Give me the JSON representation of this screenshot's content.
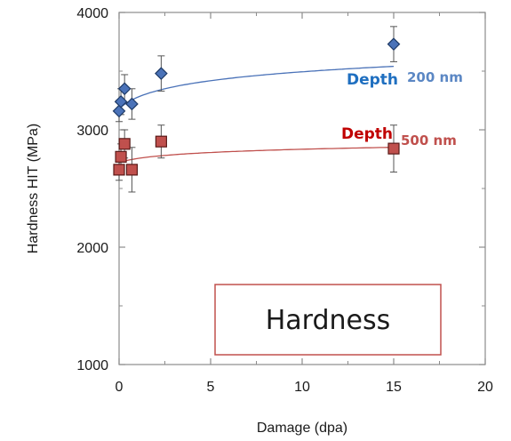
{
  "chart_data": {
    "type": "scatter",
    "xlabel": "Damage (dpa)",
    "ylabel": "Hardness HIT (MPa)",
    "xlim": [
      0,
      20
    ],
    "ylim": [
      1000,
      4000
    ],
    "xticks": [
      "0",
      "5",
      "10",
      "15",
      "20"
    ],
    "yticks": [
      "1000",
      "2000",
      "3000",
      "4000"
    ],
    "grid": false,
    "colors": {
      "series_200": "#4a72b8",
      "series_200_edge": "#1e3a66",
      "series_500": "#c0504d",
      "series_500_edge": "#5a1a18",
      "depth_blue": "#1f6fc0",
      "depth_red": "#c00000",
      "nm_blue": "#5b87c4",
      "nm_red": "#c0504d",
      "box_border": "#c0504d"
    },
    "series": [
      {
        "marker": "diamond",
        "label_depth": "Depth",
        "label_nm": "200 nm",
        "x": [
          0,
          0.1,
          0.3,
          0.7,
          2.3,
          15
        ],
        "y": [
          3160,
          3240,
          3350,
          3220,
          3480,
          3730
        ],
        "yerr": [
          90,
          110,
          120,
          130,
          150,
          150
        ]
      },
      {
        "marker": "square",
        "label_depth": "Depth",
        "label_nm": "500 nm",
        "x": [
          0,
          0.1,
          0.3,
          0.7,
          2.3,
          15
        ],
        "y": [
          2660,
          2770,
          2880,
          2660,
          2900,
          2840
        ],
        "yerr": [
          90,
          110,
          120,
          190,
          140,
          200
        ]
      }
    ],
    "box_label": "Hardness"
  }
}
